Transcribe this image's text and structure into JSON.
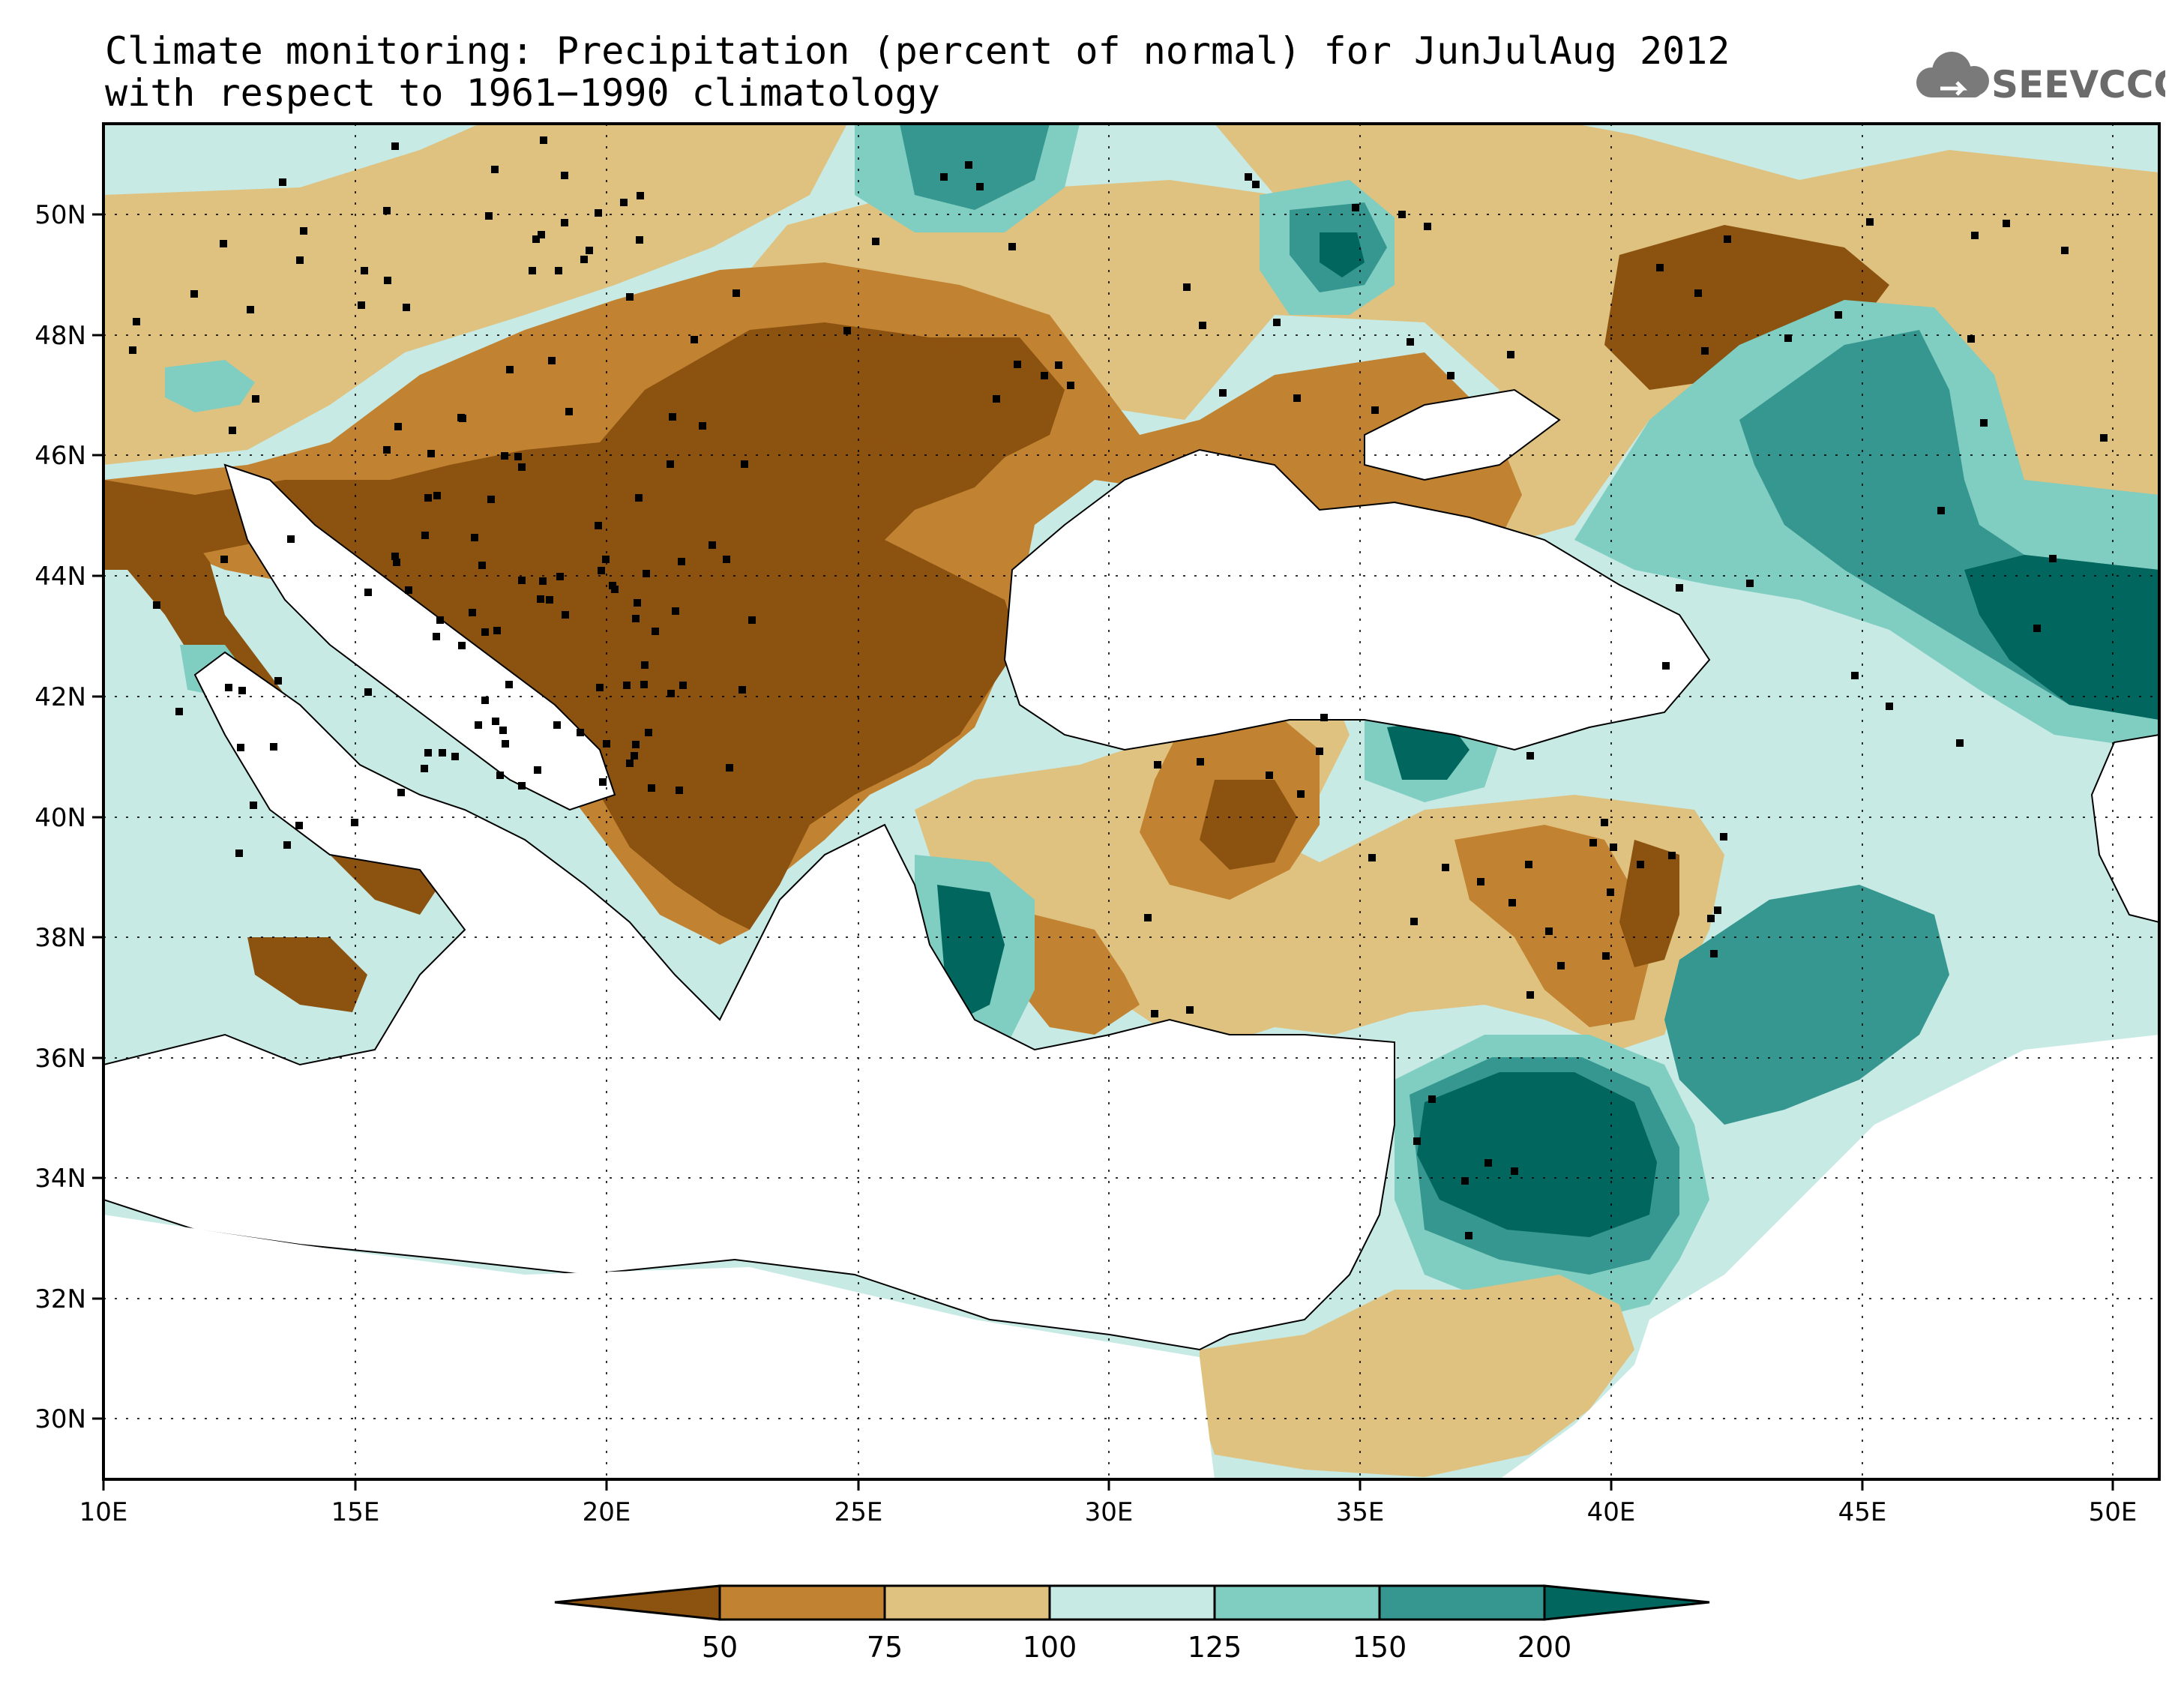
{
  "title": {
    "line1": "Climate monitoring: Precipitation (percent of normal) for JunJulAug 2012",
    "line2": "with respect to 1961−1990 climatology"
  },
  "logo": {
    "text": "SEEVCCC",
    "icon": "cloud-icon"
  },
  "map": {
    "lon_range": [
      10,
      51
    ],
    "lat_range": [
      29,
      51.5
    ],
    "x_ticks": [
      "10E",
      "15E",
      "20E",
      "25E",
      "30E",
      "35E",
      "40E",
      "45E",
      "50E"
    ],
    "y_ticks": [
      "50N",
      "48N",
      "46N",
      "44N",
      "42N",
      "40N",
      "38N",
      "36N",
      "34N",
      "32N",
      "30N"
    ]
  },
  "colorbar": {
    "labels": [
      "50",
      "75",
      "100",
      "125",
      "150",
      "200"
    ],
    "colors": [
      "#8c520f",
      "#c18232",
      "#dfc27f",
      "#c7eae5",
      "#80cdc1",
      "#35978f",
      "#01665e"
    ]
  }
}
